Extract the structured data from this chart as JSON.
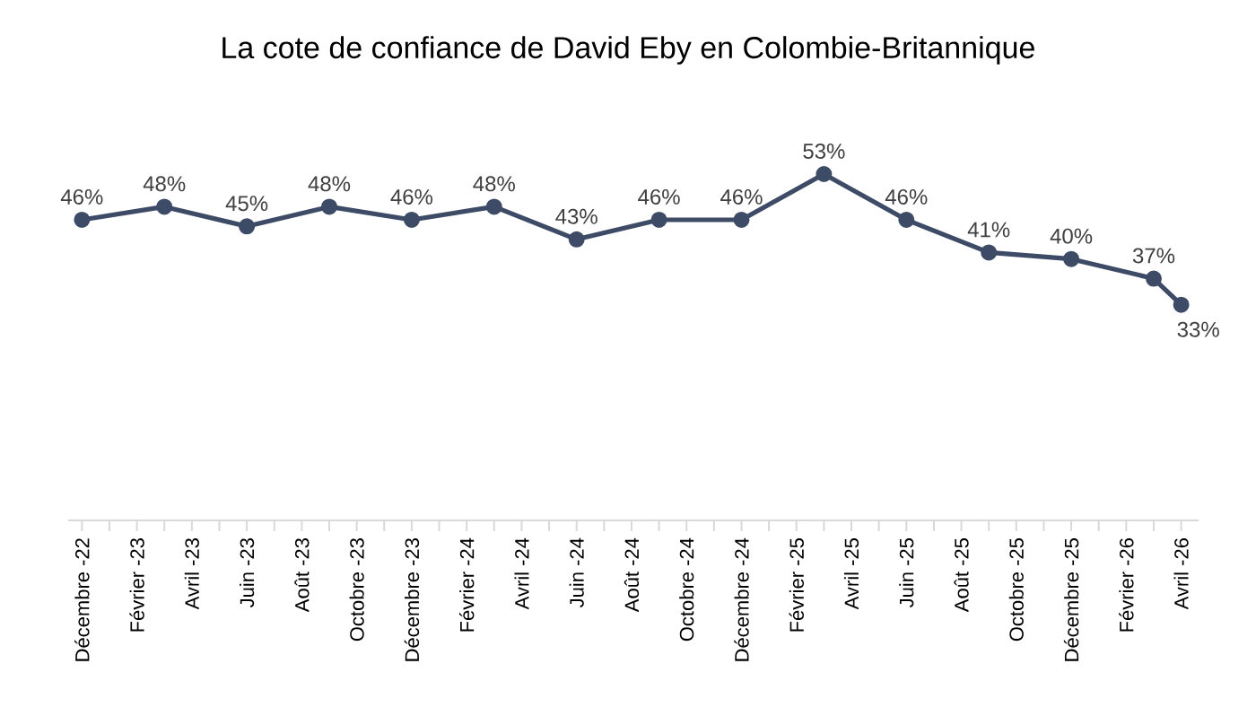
{
  "chart_data": {
    "type": "line",
    "title": "La cote de confiance de David Eby en Colombie-Britannique",
    "x": [
      "2022-12",
      "2023-03",
      "2023-06",
      "2023-09",
      "2023-12",
      "2024-03",
      "2024-06",
      "2024-09",
      "2024-12",
      "2025-03",
      "2025-06",
      "2025-09",
      "2025-12",
      "2026-03",
      "2026-04"
    ],
    "values": [
      46,
      48,
      45,
      48,
      46,
      48,
      43,
      46,
      46,
      53,
      46,
      41,
      40,
      37,
      33
    ],
    "value_labels": [
      "46%",
      "48%",
      "45%",
      "48%",
      "46%",
      "48%",
      "43%",
      "46%",
      "46%",
      "53%",
      "46%",
      "41%",
      "40%",
      "37%",
      "33%"
    ],
    "color": "#3d4b66",
    "marker": "circle",
    "line_style": "solid",
    "xlim": [
      "2022-11-16",
      "2026-04-20"
    ],
    "xticks": [
      {
        "value": "2022-12",
        "label": "Décembre -22"
      },
      {
        "value": "2023-01",
        "label": null
      },
      {
        "value": "2023-02",
        "label": "Février -23"
      },
      {
        "value": "2023-03",
        "label": null
      },
      {
        "value": "2023-04",
        "label": "Avril -23"
      },
      {
        "value": "2023-05",
        "label": null
      },
      {
        "value": "2023-06",
        "label": "Juin -23"
      },
      {
        "value": "2023-07",
        "label": null
      },
      {
        "value": "2023-08",
        "label": "Août -23"
      },
      {
        "value": "2023-09",
        "label": null
      },
      {
        "value": "2023-10",
        "label": "Octobre -23"
      },
      {
        "value": "2023-11",
        "label": null
      },
      {
        "value": "2023-12",
        "label": "Décembre -23"
      },
      {
        "value": "2024-01",
        "label": null
      },
      {
        "value": "2024-02",
        "label": "Février -24"
      },
      {
        "value": "2024-03",
        "label": null
      },
      {
        "value": "2024-04",
        "label": "Avril -24"
      },
      {
        "value": "2024-05",
        "label": null
      },
      {
        "value": "2024-06",
        "label": "Juin -24"
      },
      {
        "value": "2024-07",
        "label": null
      },
      {
        "value": "2024-08",
        "label": "Août -24"
      },
      {
        "value": "2024-09",
        "label": null
      },
      {
        "value": "2024-10",
        "label": "Octobre -24"
      },
      {
        "value": "2024-11",
        "label": null
      },
      {
        "value": "2024-12",
        "label": "Décembre -24"
      },
      {
        "value": "2025-01",
        "label": null
      },
      {
        "value": "2025-02",
        "label": "Février -25"
      },
      {
        "value": "2025-03",
        "label": null
      },
      {
        "value": "2025-04",
        "label": "Avril -25"
      },
      {
        "value": "2025-05",
        "label": null
      },
      {
        "value": "2025-06",
        "label": "Juin -25"
      },
      {
        "value": "2025-07",
        "label": null
      },
      {
        "value": "2025-08",
        "label": "Août -25"
      },
      {
        "value": "2025-09",
        "label": null
      },
      {
        "value": "2025-10",
        "label": "Octobre -25"
      },
      {
        "value": "2025-11",
        "label": null
      },
      {
        "value": "2025-12",
        "label": "Décembre -25"
      },
      {
        "value": "2026-01",
        "label": null
      },
      {
        "value": "2026-02",
        "label": "Février -26"
      },
      {
        "value": "2026-03",
        "label": null
      },
      {
        "value": "2026-04",
        "label": "Avril -26"
      }
    ],
    "tick_labels": "x"
  }
}
